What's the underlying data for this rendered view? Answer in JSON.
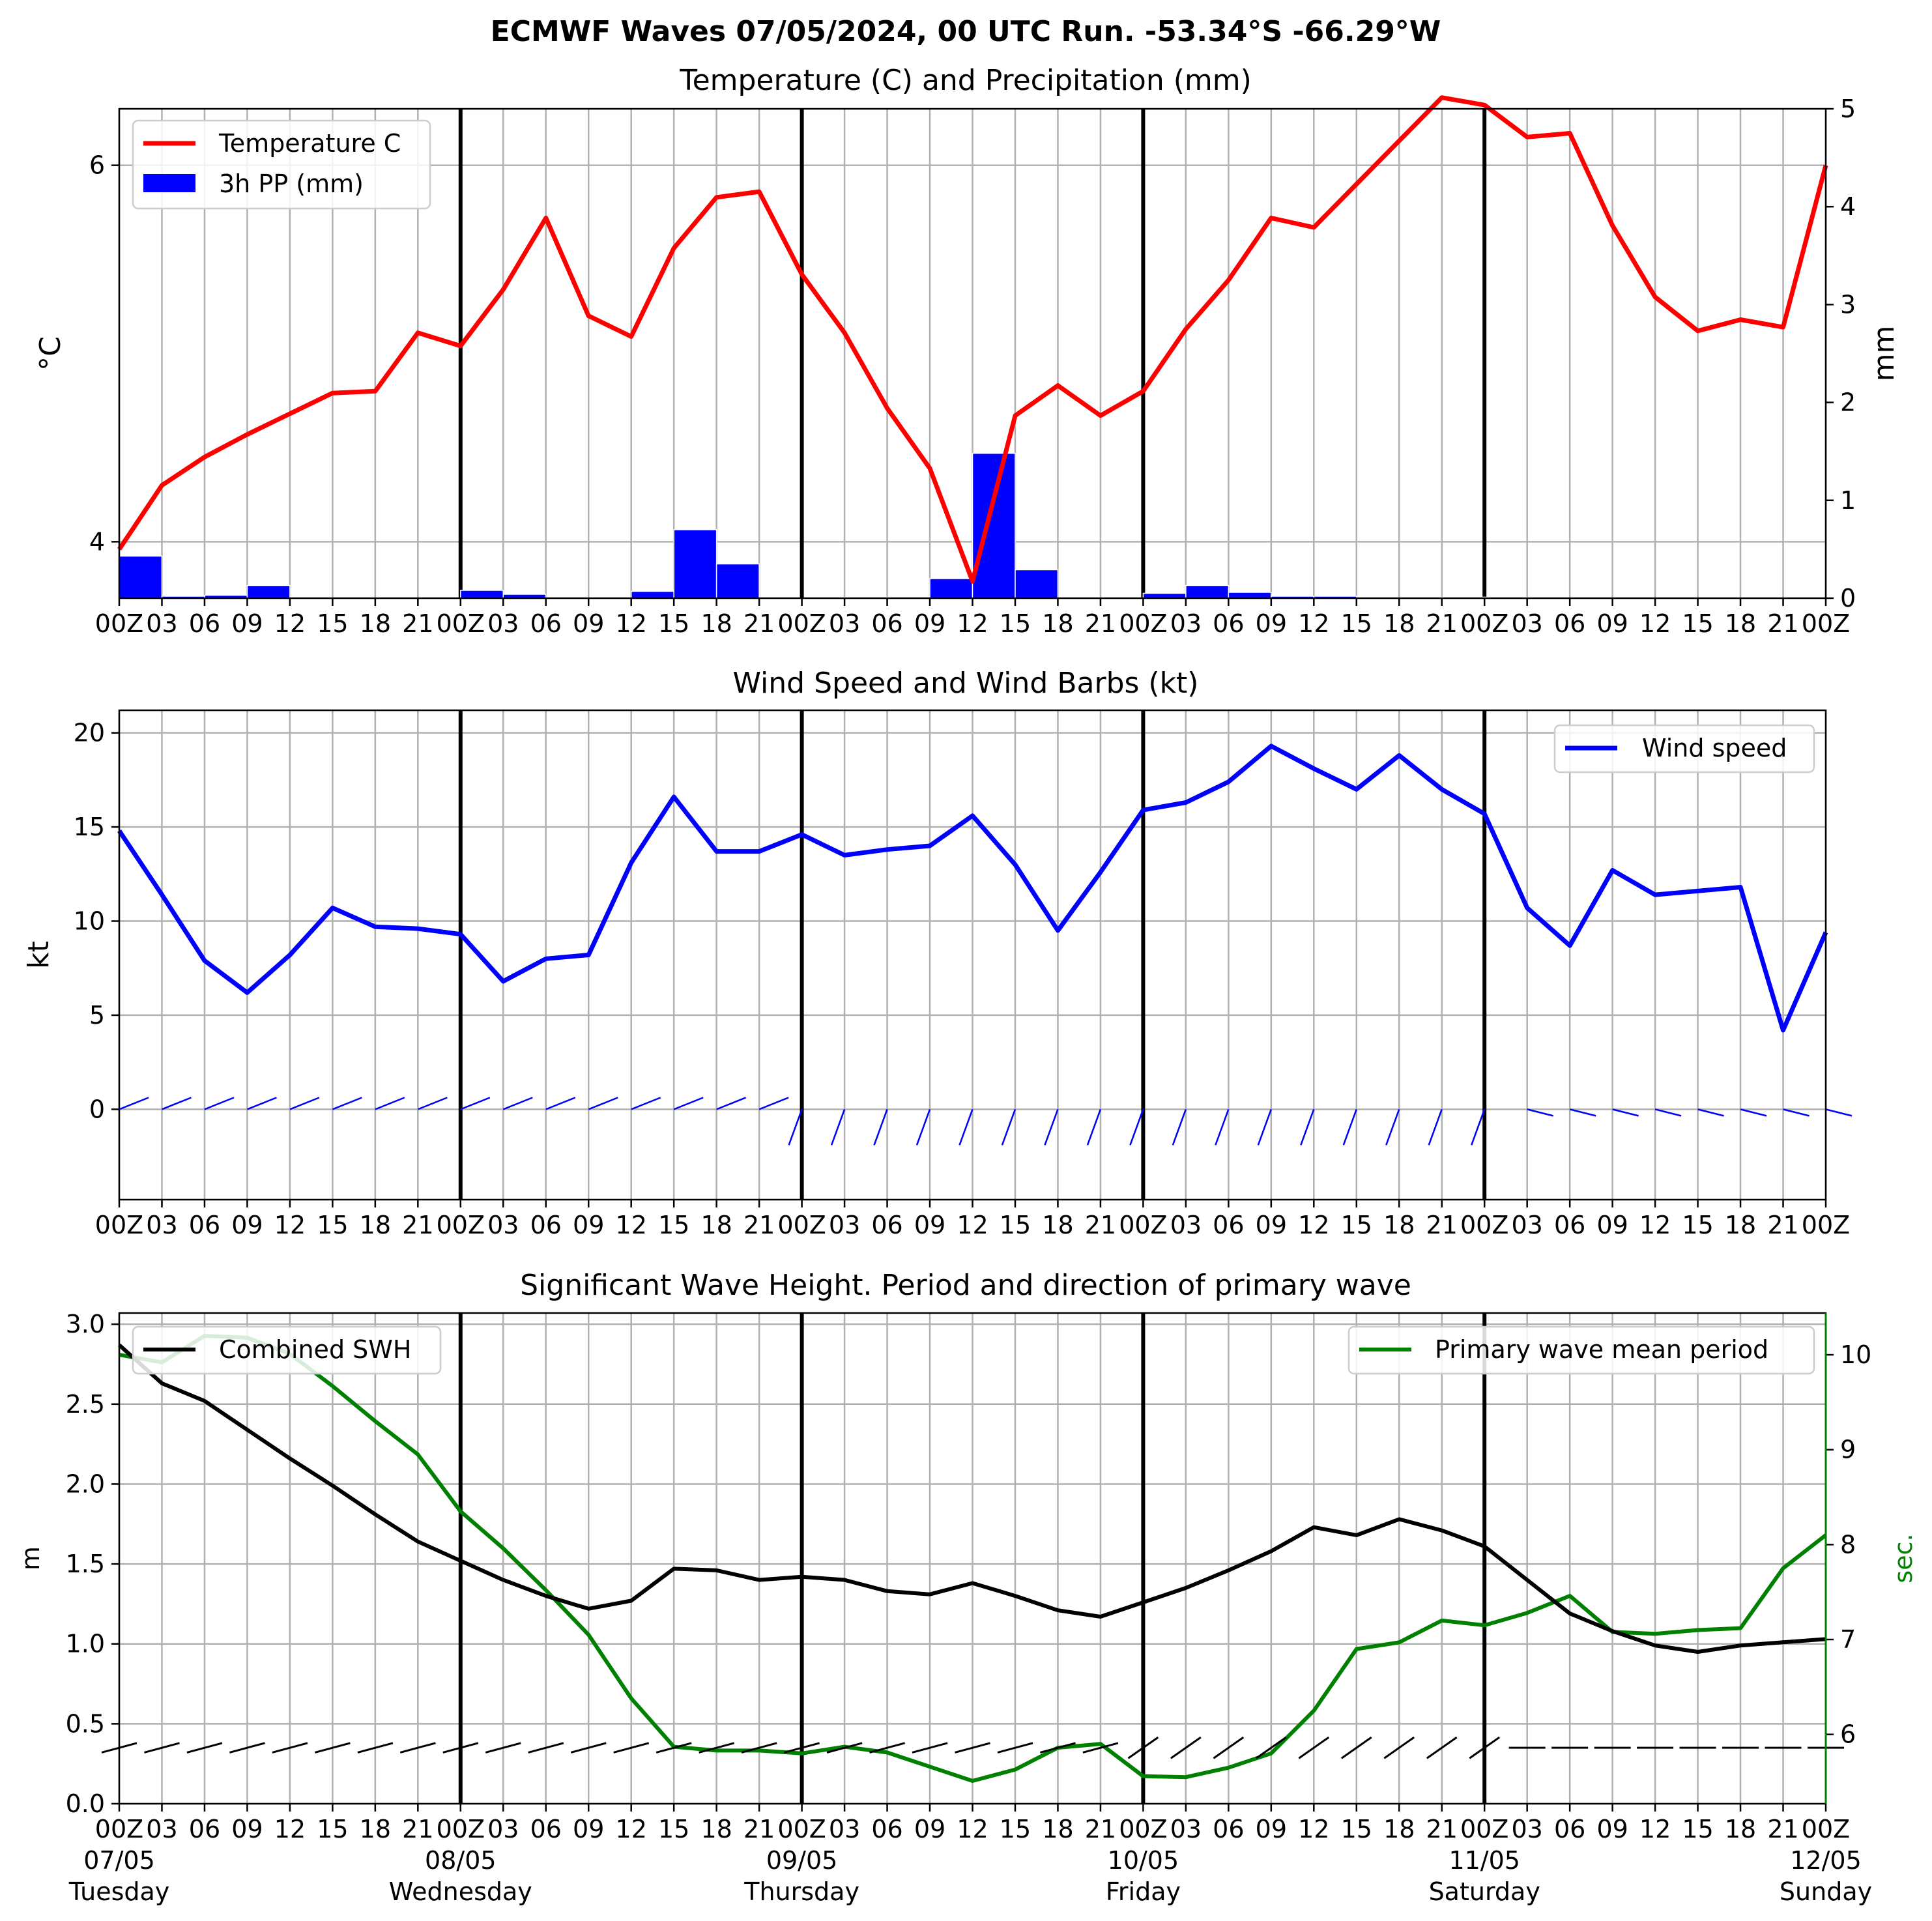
{
  "suptitle": "ECMWF Waves 07/05/2024, 00 UTC Run. -53.34°S -66.29°W",
  "hour_labels": [
    "00Z",
    "03",
    "06",
    "09",
    "12",
    "15",
    "18",
    "21",
    "00Z",
    "03",
    "06",
    "09",
    "12",
    "15",
    "18",
    "21",
    "00Z",
    "03",
    "06",
    "09",
    "12",
    "15",
    "18",
    "21",
    "00Z",
    "03",
    "06",
    "09",
    "12",
    "15",
    "18",
    "21",
    "00Z",
    "03",
    "06",
    "09",
    "12",
    "15",
    "18",
    "21",
    "00Z"
  ],
  "day_labels": [
    {
      "date": "07/05",
      "day": "Tuesday"
    },
    {
      "date": "08/05",
      "day": "Wednesday"
    },
    {
      "date": "09/05",
      "day": "Thursday"
    },
    {
      "date": "10/05",
      "day": "Friday"
    },
    {
      "date": "11/05",
      "day": "Saturday"
    },
    {
      "date": "12/05",
      "day": "Sunday"
    }
  ],
  "colors": {
    "temperature": "#ff0000",
    "precip": "#0000ff",
    "wind": "#0000ff",
    "swh": "#000000",
    "period": "#008000",
    "grid": "#b0b0b0"
  },
  "chart_data": [
    {
      "type": "line",
      "title": "Temperature (C) and Precipitation (mm)",
      "ylabel": "°C",
      "y2label": "mm",
      "x_step_hours": 3,
      "ylim": [
        3.7,
        6.3
      ],
      "yticks": [
        4,
        6
      ],
      "y2lim": [
        0,
        5
      ],
      "y2ticks": [
        0,
        1,
        2,
        3,
        4,
        5
      ],
      "grid": true,
      "legend": "top-left",
      "series": [
        {
          "name": "Temperature C",
          "kind": "line",
          "axis": "left",
          "values": [
            3.96,
            4.3,
            4.45,
            4.57,
            4.68,
            4.79,
            4.8,
            5.11,
            5.04,
            5.34,
            5.72,
            5.2,
            5.09,
            5.56,
            5.83,
            5.86,
            5.42,
            5.11,
            4.71,
            4.39,
            3.79,
            4.67,
            4.83,
            4.67,
            4.8,
            5.13,
            5.39,
            5.72,
            5.67,
            5.9,
            6.13,
            6.36,
            6.32,
            6.15,
            6.17,
            5.68,
            5.3,
            5.12,
            5.18,
            5.14,
            6.0
          ]
        },
        {
          "name": "3h PP (mm)",
          "kind": "bar",
          "axis": "right",
          "values": [
            0.43,
            0.02,
            0.03,
            0.13,
            0.0,
            0.0,
            0.0,
            0.0,
            0.08,
            0.04,
            0.0,
            0.0,
            0.07,
            0.7,
            0.35,
            0.0,
            0.0,
            0.01,
            0.0,
            0.2,
            1.48,
            0.29,
            0.0,
            0.0,
            0.05,
            0.13,
            0.06,
            0.02,
            0.02,
            0.0,
            0.0,
            0.01,
            0.01,
            0.0,
            0.0,
            0.0,
            0.0,
            0.0,
            0.0,
            0.0
          ]
        }
      ]
    },
    {
      "type": "line",
      "title": "Wind Speed and Wind Barbs (kt)",
      "ylabel": "kt",
      "ylim": [
        -4.8,
        21.2
      ],
      "yticks": [
        0,
        5,
        10,
        15,
        20
      ],
      "grid": true,
      "legend": "top-right",
      "series": [
        {
          "name": "Wind speed",
          "kind": "line",
          "values": [
            14.8,
            11.4,
            7.9,
            6.2,
            8.2,
            10.7,
            9.7,
            9.6,
            9.3,
            6.8,
            8.0,
            8.2,
            13.1,
            16.6,
            13.7,
            13.7,
            14.6,
            13.5,
            13.8,
            14.0,
            15.6,
            13.0,
            9.5,
            12.6,
            15.9,
            16.3,
            17.4,
            19.3,
            18.1,
            17.0,
            18.8,
            17.0,
            15.7,
            10.7,
            8.7,
            12.7,
            11.4,
            11.6,
            11.8,
            4.2,
            9.4
          ]
        }
      ]
    },
    {
      "type": "line",
      "title": "Significant Wave Height. Period and direction of primary wave",
      "ylabel": "m",
      "y2label": "sec.",
      "ylim": [
        0.0,
        3.07
      ],
      "yticks": [
        0.0,
        0.5,
        1.0,
        1.5,
        2.0,
        2.5,
        3.0
      ],
      "y2lim": [
        5.27,
        10.44
      ],
      "y2ticks": [
        6,
        7,
        8,
        9,
        10
      ],
      "grid": true,
      "series": [
        {
          "name": "Combined SWH",
          "kind": "line",
          "axis": "left",
          "legend": "top-left",
          "values": [
            2.87,
            2.63,
            2.52,
            2.34,
            2.16,
            1.99,
            1.81,
            1.64,
            1.52,
            1.4,
            1.3,
            1.22,
            1.27,
            1.47,
            1.46,
            1.4,
            1.42,
            1.4,
            1.33,
            1.31,
            1.38,
            1.3,
            1.21,
            1.17,
            1.26,
            1.35,
            1.46,
            1.58,
            1.73,
            1.68,
            1.78,
            1.71,
            1.61,
            1.4,
            1.19,
            1.08,
            0.99,
            0.95,
            0.99,
            1.01,
            1.03
          ]
        },
        {
          "name": "Primary wave mean period",
          "kind": "line",
          "axis": "right",
          "legend": "top-right",
          "values": [
            10.0,
            9.92,
            10.2,
            10.18,
            10.01,
            9.67,
            9.3,
            8.95,
            8.35,
            7.96,
            7.52,
            7.05,
            6.38,
            5.87,
            5.83,
            5.83,
            5.8,
            5.87,
            5.81,
            5.66,
            5.51,
            5.63,
            5.86,
            5.9,
            5.56,
            5.55,
            5.65,
            5.8,
            6.25,
            6.9,
            6.97,
            7.2,
            7.15,
            7.28,
            7.46,
            7.08,
            7.06,
            7.1,
            7.12,
            7.75,
            8.1
          ]
        }
      ]
    }
  ]
}
